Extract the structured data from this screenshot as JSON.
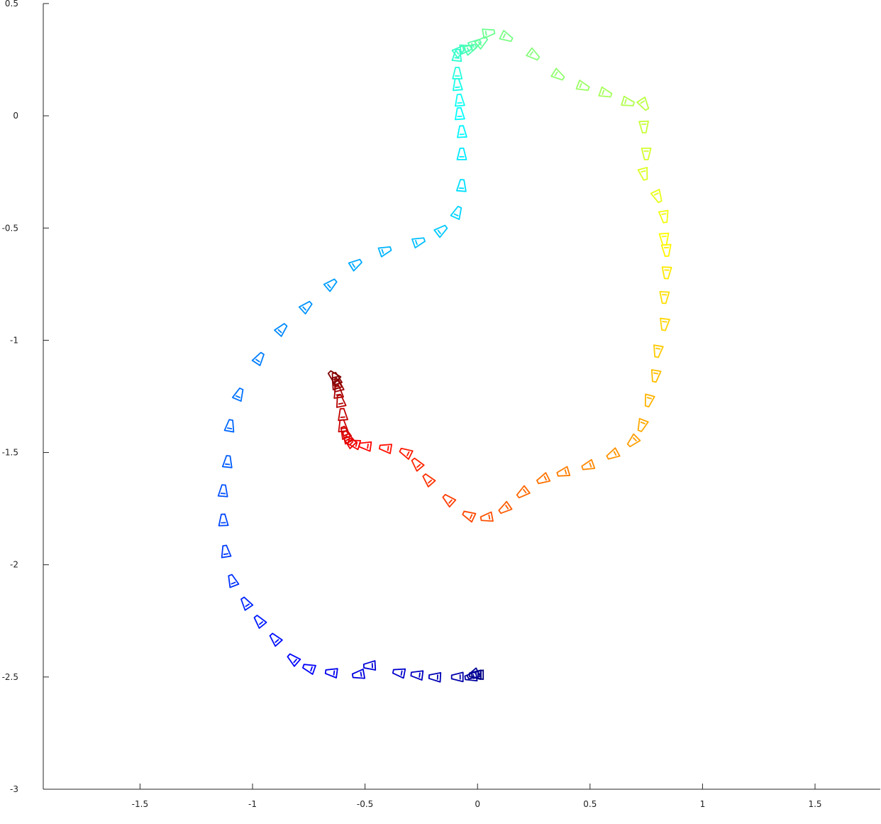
{
  "chart_data": {
    "type": "scatter",
    "marker": "camera-frustum",
    "title": "",
    "xlabel": "",
    "ylabel": "",
    "xlim": [
      -1.93,
      1.79
    ],
    "ylim": [
      -3,
      0.5
    ],
    "x_ticks": [
      -1.5,
      -1,
      -0.5,
      0,
      0.5,
      1,
      1.5
    ],
    "x_tick_labels": [
      "-1.5",
      "-1",
      "-0.5",
      "0",
      "0.5",
      "1",
      "1.5"
    ],
    "y_ticks": [
      0.5,
      0,
      -0.5,
      -1,
      -1.5,
      -2,
      -2.5,
      -3
    ],
    "y_tick_labels": [
      "0.5",
      "0",
      "-0.5",
      "-1",
      "-1.5",
      "-2",
      "-2.5",
      "-3"
    ],
    "grid": false,
    "legend": "none",
    "colormap": "jet",
    "trajectory": [
      [
        0.0,
        -2.49
      ],
      [
        -0.01,
        -2.49
      ],
      [
        -0.02,
        -2.49
      ],
      [
        -0.03,
        -2.5
      ],
      [
        -0.09,
        -2.5
      ],
      [
        -0.19,
        -2.5
      ],
      [
        -0.27,
        -2.49
      ],
      [
        -0.35,
        -2.48
      ],
      [
        -0.48,
        -2.45
      ],
      [
        -0.53,
        -2.49
      ],
      [
        -0.65,
        -2.48
      ],
      [
        -0.75,
        -2.46
      ],
      [
        -0.82,
        -2.42
      ],
      [
        -0.9,
        -2.33
      ],
      [
        -0.97,
        -2.25
      ],
      [
        -1.03,
        -2.17
      ],
      [
        -1.09,
        -2.07
      ],
      [
        -1.12,
        -1.94
      ],
      [
        -1.13,
        -1.8
      ],
      [
        -1.13,
        -1.67
      ],
      [
        -1.11,
        -1.54
      ],
      [
        -1.1,
        -1.38
      ],
      [
        -1.06,
        -1.24
      ],
      [
        -0.97,
        -1.08
      ],
      [
        -0.87,
        -0.95
      ],
      [
        -0.76,
        -0.85
      ],
      [
        -0.65,
        -0.75
      ],
      [
        -0.54,
        -0.66
      ],
      [
        -0.41,
        -0.6
      ],
      [
        -0.26,
        -0.56
      ],
      [
        -0.16,
        -0.51
      ],
      [
        -0.09,
        -0.43
      ],
      [
        -0.07,
        -0.31
      ],
      [
        -0.07,
        -0.17
      ],
      [
        -0.07,
        -0.07
      ],
      [
        -0.08,
        0.01
      ],
      [
        -0.08,
        0.07
      ],
      [
        -0.09,
        0.14
      ],
      [
        -0.09,
        0.19
      ],
      [
        -0.09,
        0.27
      ],
      [
        -0.08,
        0.29
      ],
      [
        -0.05,
        0.3
      ],
      [
        -0.03,
        0.3
      ],
      [
        -0.01,
        0.32
      ],
      [
        0.02,
        0.33
      ],
      [
        0.05,
        0.37
      ],
      [
        0.13,
        0.35
      ],
      [
        0.25,
        0.27
      ],
      [
        0.36,
        0.18
      ],
      [
        0.47,
        0.13
      ],
      [
        0.57,
        0.1
      ],
      [
        0.67,
        0.06
      ],
      [
        0.74,
        0.05
      ],
      [
        0.74,
        -0.05
      ],
      [
        0.75,
        -0.17
      ],
      [
        0.74,
        -0.26
      ],
      [
        0.8,
        -0.36
      ],
      [
        0.83,
        -0.45
      ],
      [
        0.83,
        -0.55
      ],
      [
        0.84,
        -0.6
      ],
      [
        0.84,
        -0.7
      ],
      [
        0.83,
        -0.81
      ],
      [
        0.83,
        -0.93
      ],
      [
        0.8,
        -1.05
      ],
      [
        0.79,
        -1.16
      ],
      [
        0.76,
        -1.27
      ],
      [
        0.73,
        -1.38
      ],
      [
        0.69,
        -1.45
      ],
      [
        0.6,
        -1.51
      ],
      [
        0.49,
        -1.56
      ],
      [
        0.38,
        -1.59
      ],
      [
        0.29,
        -1.62
      ],
      [
        0.2,
        -1.68
      ],
      [
        0.12,
        -1.75
      ],
      [
        0.04,
        -1.79
      ],
      [
        -0.04,
        -1.78
      ],
      [
        -0.13,
        -1.71
      ],
      [
        -0.22,
        -1.62
      ],
      [
        -0.27,
        -1.55
      ],
      [
        -0.32,
        -1.5
      ],
      [
        -0.41,
        -1.48
      ],
      [
        -0.5,
        -1.47
      ],
      [
        -0.55,
        -1.46
      ],
      [
        -0.57,
        -1.45
      ],
      [
        -0.58,
        -1.43
      ],
      [
        -0.59,
        -1.41
      ],
      [
        -0.6,
        -1.38
      ],
      [
        -0.6,
        -1.33
      ],
      [
        -0.61,
        -1.27
      ],
      [
        -0.62,
        -1.23
      ],
      [
        -0.62,
        -1.2
      ],
      [
        -0.63,
        -1.19
      ],
      [
        -0.63,
        -1.17
      ],
      [
        -0.64,
        -1.16
      ]
    ]
  }
}
